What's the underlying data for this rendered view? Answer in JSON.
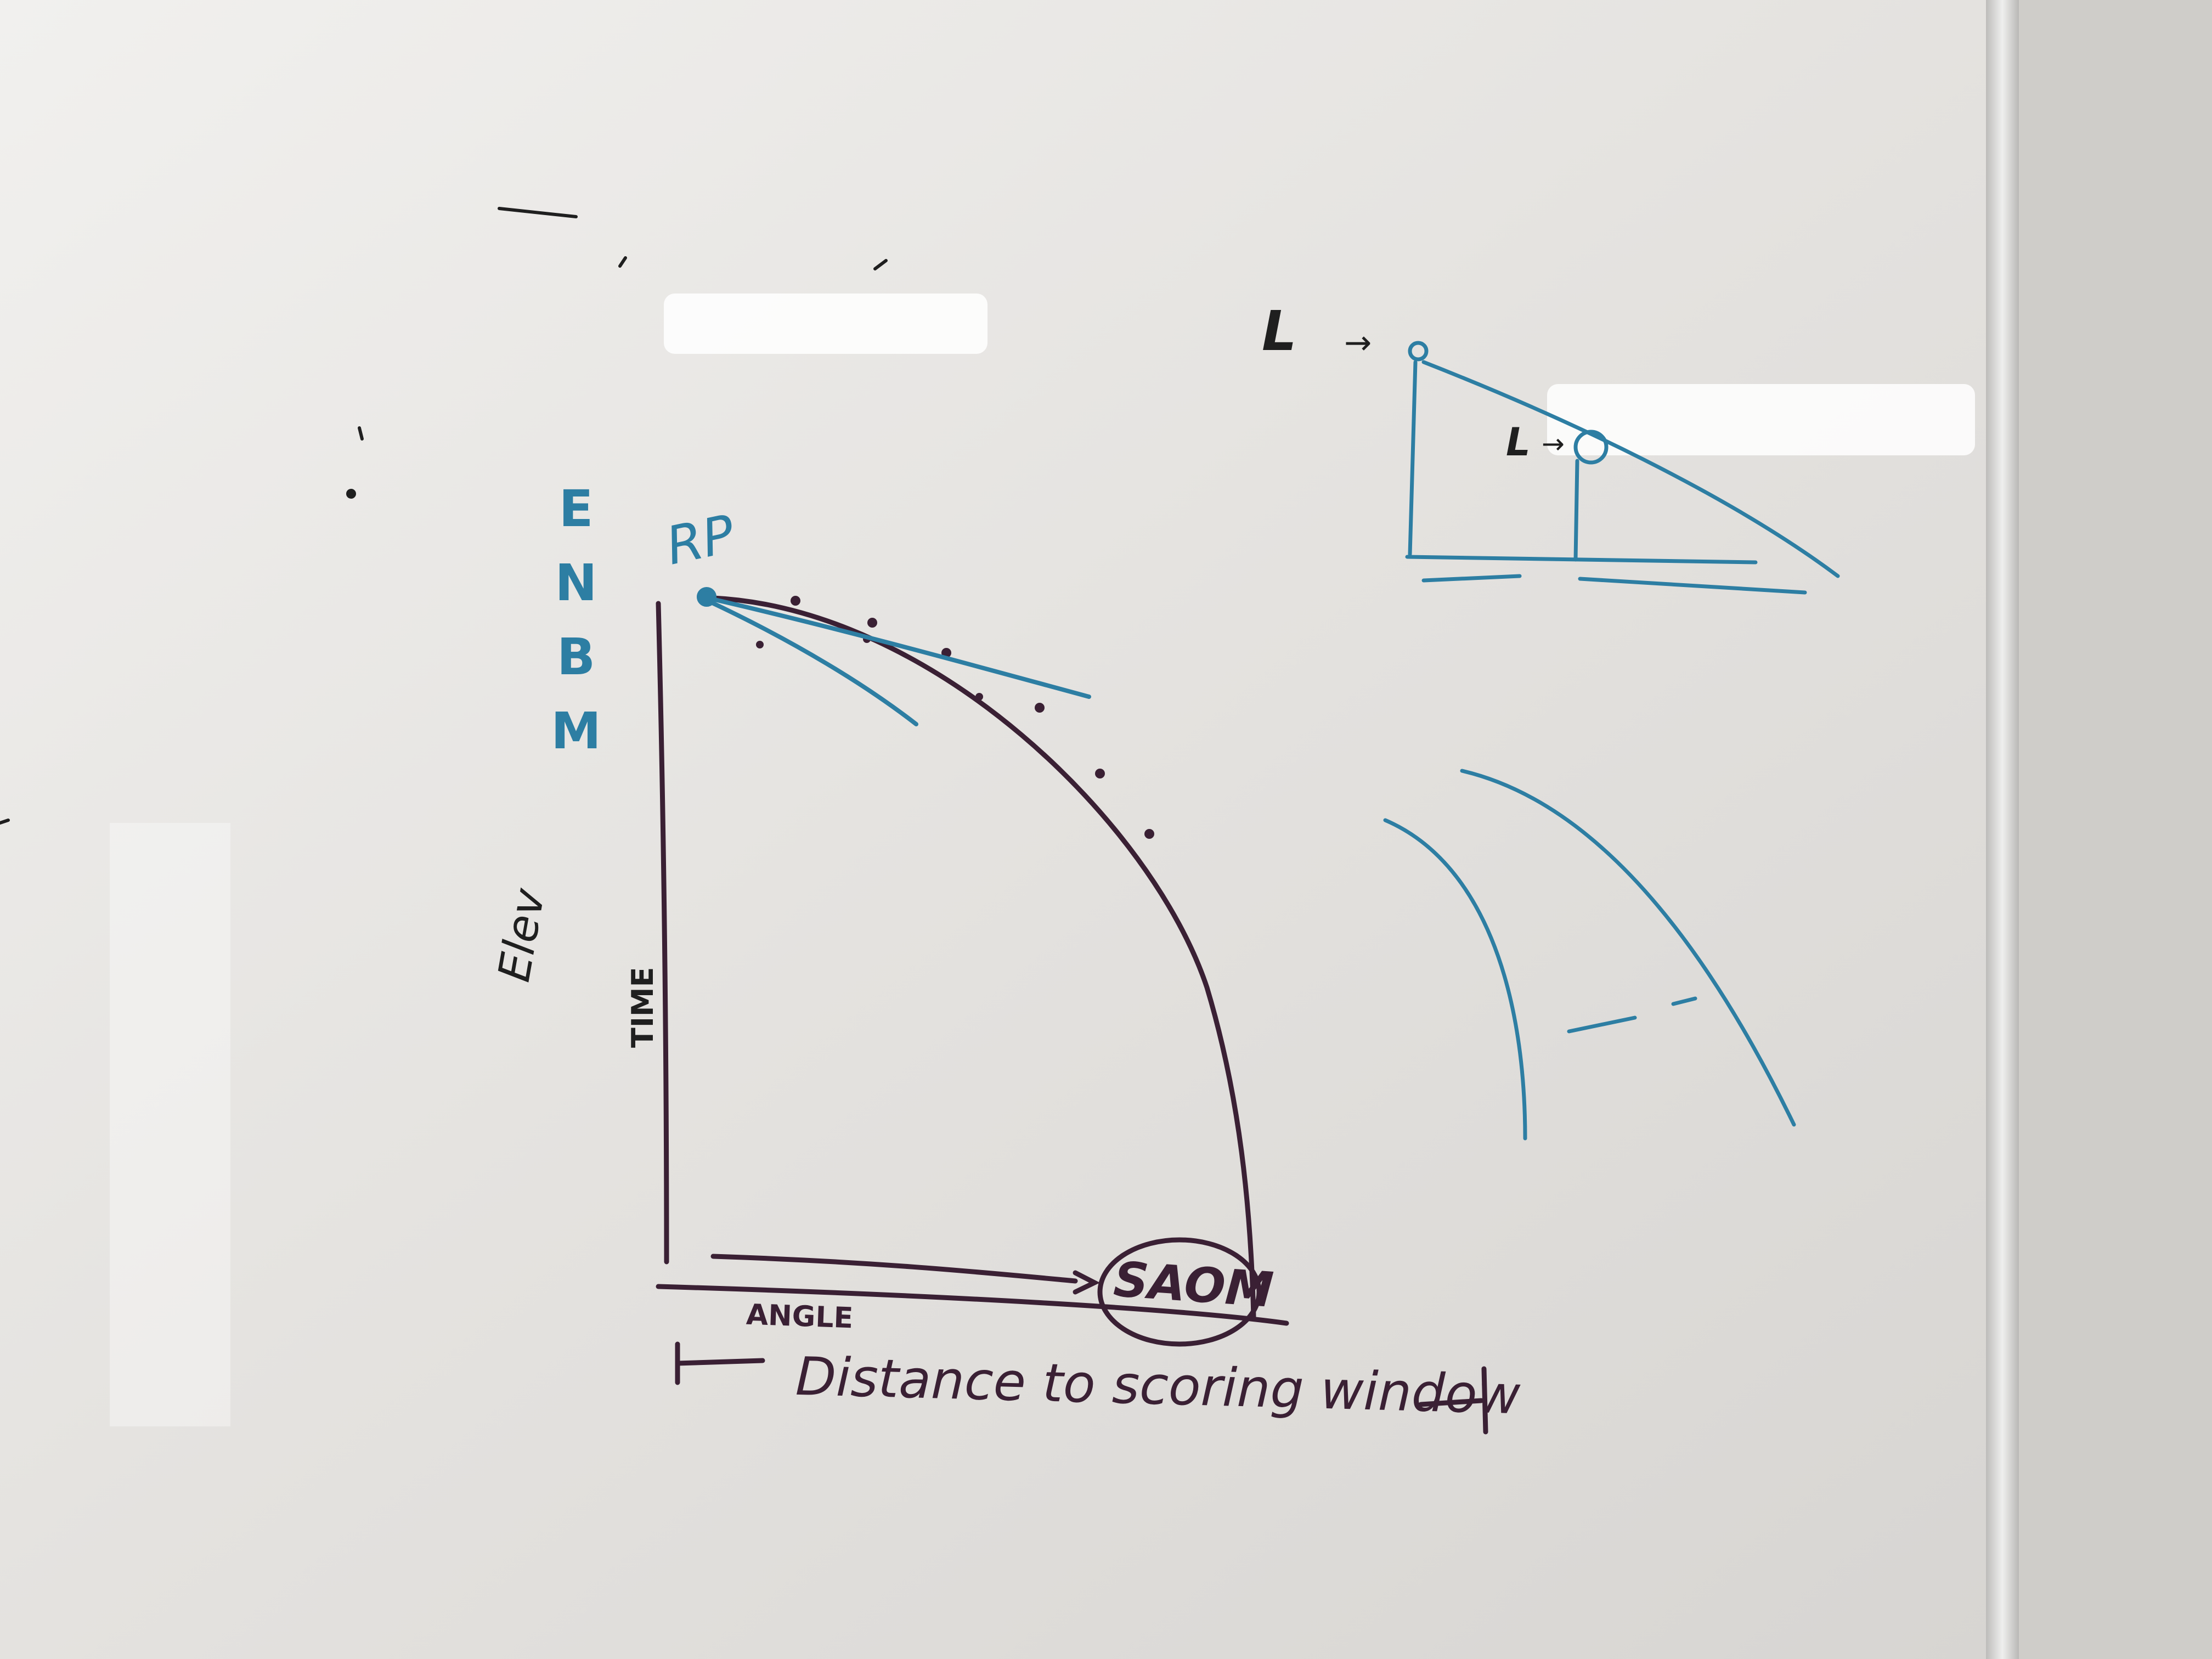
{
  "whiteboard": {
    "labels": {
      "enbm": [
        "E",
        "N",
        "B",
        "M"
      ],
      "rp": "RP",
      "elev": "Elev",
      "time": "TIME",
      "angle": "ANGLE",
      "target": "SAOM",
      "distance": "Distance to scoring window",
      "l_upper": "L",
      "l_lower": "L"
    },
    "colors": {
      "board": "#e6e4e1",
      "blue_marker": "#2d7ea3",
      "purple_marker": "#3a2034",
      "black_marker": "#1f1f1f",
      "frame": "#d0d0cf"
    }
  }
}
